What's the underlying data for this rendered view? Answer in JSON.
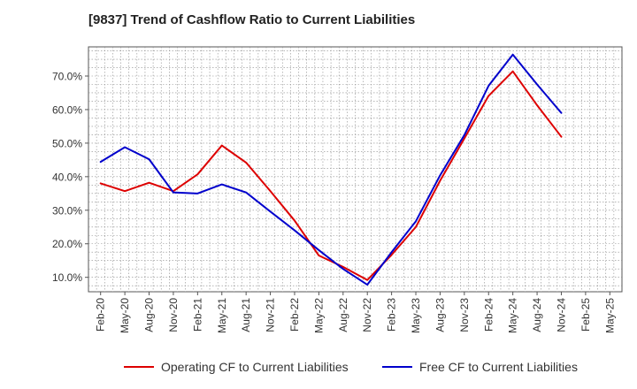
{
  "chart_data": {
    "type": "line",
    "title": "[9837]  Trend of Cashflow Ratio to Current Liabilities",
    "categories": [
      "Feb-20",
      "May-20",
      "Aug-20",
      "Nov-20",
      "Feb-21",
      "May-21",
      "Aug-21",
      "Nov-21",
      "Feb-22",
      "May-22",
      "Aug-22",
      "Nov-22",
      "Feb-23",
      "May-23",
      "Aug-23",
      "Nov-23",
      "Feb-24",
      "May-24",
      "Aug-24",
      "Nov-24",
      "Feb-25",
      "May-25"
    ],
    "ylim": [
      5.7,
      78.7
    ],
    "yticks": [
      10,
      20,
      30,
      40,
      50,
      60,
      70
    ],
    "ytick_labels": [
      "10.0%",
      "20.0%",
      "30.0%",
      "40.0%",
      "50.0%",
      "60.0%",
      "70.0%"
    ],
    "grid": true,
    "legend_position": "bottom",
    "series": [
      {
        "name": "Operating CF to Current Liabilities",
        "color": "#dd0000",
        "values": [
          38.0,
          35.7,
          38.2,
          35.7,
          40.7,
          49.3,
          44.2,
          35.7,
          26.9,
          16.5,
          13.1,
          9.2,
          16.7,
          25.0,
          38.8,
          51.4,
          64.1,
          71.4,
          61.3,
          51.9,
          null,
          null
        ]
      },
      {
        "name": "Free CF to Current Liabilities",
        "color": "#0000cc",
        "values": [
          44.4,
          48.8,
          45.2,
          35.3,
          35.0,
          37.7,
          35.3,
          29.6,
          24.0,
          18.1,
          12.5,
          7.8,
          17.5,
          26.7,
          40.4,
          52.4,
          67.1,
          76.4,
          67.5,
          59.0,
          null,
          null
        ]
      }
    ]
  }
}
